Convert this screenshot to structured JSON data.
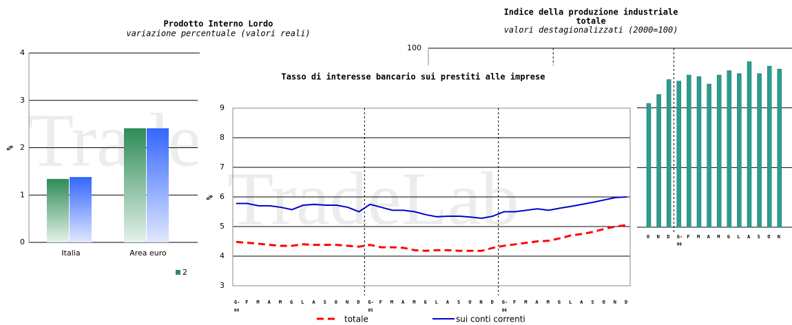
{
  "watermark": "TradeLab",
  "chart_data": [
    {
      "type": "bar",
      "title": "Prodotto Interno Lordo",
      "subtitle": "variazione percentuale (valori reali)",
      "ylabel": "%",
      "categories": [
        "Italia",
        "Area euro"
      ],
      "series": [
        {
          "name": "2",
          "color": "#2e8b57",
          "values": [
            1.34,
            2.41
          ]
        },
        {
          "color": "#3366ff",
          "values": [
            1.38,
            2.41
          ]
        }
      ],
      "ylim": [
        0,
        4
      ],
      "yticks": [
        0,
        1,
        2,
        3,
        4
      ],
      "grid": true
    },
    {
      "type": "bar",
      "title": "Indice della produzione industriale",
      "subtitle": "totale",
      "note": "valori destagionalizzati (2000=100)",
      "categories": [
        "O",
        "N",
        "D",
        "G-",
        "F",
        "M",
        "A",
        "M",
        "G",
        "L",
        "A",
        "S",
        "O",
        "N"
      ],
      "category_years": [
        null,
        null,
        null,
        "06",
        null,
        null,
        null,
        null,
        null,
        null,
        null,
        null,
        null,
        null
      ],
      "values": [
        96.3,
        96.9,
        97.9,
        97.8,
        98.2,
        98.1,
        97.6,
        98.2,
        98.5,
        98.3,
        99.1,
        98.3,
        98.8,
        98.6
      ],
      "color": "#2a9d8f",
      "ylim": [
        88,
        100
      ],
      "yticks": [
        88,
        92,
        96,
        100
      ],
      "grid": true
    },
    {
      "type": "line",
      "title": "Tasso di interesse bancario sui prestiti alle imprese",
      "ylabel": "%",
      "categories": [
        "G-",
        "F",
        "M",
        "A",
        "M",
        "G",
        "L",
        "A",
        "S",
        "O",
        "N",
        "D",
        "G-",
        "F",
        "M",
        "A",
        "M",
        "G",
        "L",
        "A",
        "S",
        "O",
        "N",
        "D",
        "G-",
        "F",
        "M",
        "A",
        "M",
        "G",
        "L",
        "A",
        "S",
        "O",
        "N",
        "D"
      ],
      "category_years": [
        "04",
        null,
        null,
        null,
        null,
        null,
        null,
        null,
        null,
        null,
        null,
        null,
        "05",
        null,
        null,
        null,
        null,
        null,
        null,
        null,
        null,
        null,
        null,
        null,
        "06",
        null,
        null,
        null,
        null,
        null,
        null,
        null,
        null,
        null,
        null,
        null
      ],
      "series": [
        {
          "name": "totale",
          "color": "#ff0000",
          "dashed": true,
          "values": [
            4.48,
            4.45,
            4.42,
            4.38,
            4.35,
            4.35,
            4.4,
            4.38,
            4.38,
            4.38,
            4.35,
            4.32,
            4.38,
            4.3,
            4.3,
            4.28,
            4.2,
            4.18,
            4.2,
            4.2,
            4.18,
            4.18,
            4.18,
            4.28,
            4.35,
            4.4,
            4.45,
            4.5,
            4.52,
            4.6,
            4.7,
            4.75,
            4.82,
            4.92,
            5.0,
            5.05
          ]
        },
        {
          "name": "sui conti correnti",
          "color": "#0000cc",
          "dashed": false,
          "values": [
            5.78,
            5.78,
            5.7,
            5.7,
            5.65,
            5.57,
            5.72,
            5.75,
            5.72,
            5.72,
            5.65,
            5.5,
            5.75,
            5.65,
            5.55,
            5.55,
            5.5,
            5.4,
            5.33,
            5.35,
            5.35,
            5.32,
            5.28,
            5.35,
            5.5,
            5.5,
            5.55,
            5.6,
            5.55,
            5.62,
            5.68,
            5.75,
            5.82,
            5.9,
            5.98,
            6.0
          ]
        }
      ],
      "ylim": [
        3,
        9
      ],
      "yticks": [
        3,
        4,
        5,
        6,
        7,
        8,
        9
      ],
      "grid": true
    }
  ]
}
